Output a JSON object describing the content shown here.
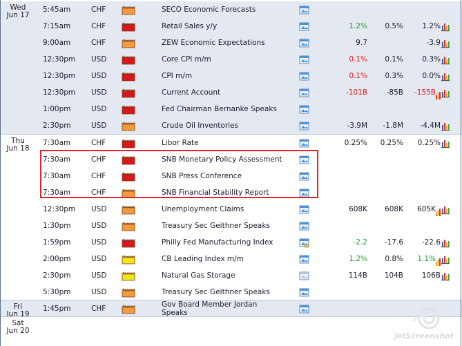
{
  "days": [
    {
      "label": [
        "Wed",
        "Jun 17"
      ],
      "rows": [
        {
          "time": "5:45am",
          "cur": "CHF",
          "imp": "medium",
          "event": "SECO Economic Forecasts",
          "note": "note-icon",
          "actual": "",
          "forecast": "",
          "previous": "",
          "chart": false
        },
        {
          "time": "7:15am",
          "cur": "CHF",
          "imp": "high",
          "event": "Retail Sales y/y",
          "note": "note-icon",
          "actual": "1.2%",
          "actual_color": "green",
          "forecast": "0.5%",
          "previous": "1.2%",
          "chart": true
        },
        {
          "time": "9:00am",
          "cur": "CHF",
          "imp": "medium",
          "event": "ZEW Economic Expectations",
          "note": "note-icon",
          "actual": "9.7",
          "forecast": "",
          "previous": "-3.9",
          "chart": true
        },
        {
          "time": "12:30pm",
          "cur": "USD",
          "imp": "high",
          "event": "Core CPI m/m",
          "note": "note-icon",
          "actual": "0.1%",
          "actual_color": "red",
          "forecast": "0.1%",
          "previous": "0.3%",
          "chart": true
        },
        {
          "time": "12:30pm",
          "cur": "USD",
          "imp": "high",
          "event": "CPI m/m",
          "note": "note-icon",
          "actual": "0.1%",
          "actual_color": "red",
          "forecast": "0.3%",
          "previous": "0.0%",
          "chart": true
        },
        {
          "time": "12:30pm",
          "cur": "USD",
          "imp": "high",
          "event": "Current Account",
          "note": "note-icon",
          "actual": "-101B",
          "actual_color": "red",
          "forecast": "-85B",
          "previous": "-155B",
          "previous_color": "red",
          "revised": "down",
          "chart": true
        },
        {
          "time": "1:00pm",
          "cur": "USD",
          "imp": "high",
          "event": "Fed Chairman Bernanke Speaks",
          "note": "note-icon",
          "actual": "",
          "forecast": "",
          "previous": "",
          "chart": false
        },
        {
          "time": "2:30pm",
          "cur": "USD",
          "imp": "medium",
          "event": "Crude Oil Inventories",
          "note": "note-icon",
          "actual": "-3.9M",
          "forecast": "-1.8M",
          "previous": "-4.4M",
          "chart": true
        }
      ]
    },
    {
      "label": [
        "Thu",
        "Jun 18"
      ],
      "rows": [
        {
          "time": "7:30am",
          "cur": "CHF",
          "imp": "high",
          "event": "Libor Rate",
          "note": "note-icon",
          "actual": "0.25%",
          "forecast": "0.25%",
          "previous": "0.25%",
          "chart": true
        },
        {
          "time": "7:30am",
          "cur": "CHF",
          "imp": "high",
          "event": "SNB Monetary Policy Assessment",
          "note": "note-icon",
          "actual": "",
          "forecast": "",
          "previous": "",
          "chart": false
        },
        {
          "time": "7:30am",
          "cur": "CHF",
          "imp": "high",
          "event": "SNB Press Conference",
          "note": "note-icon",
          "actual": "",
          "forecast": "",
          "previous": "",
          "chart": false
        },
        {
          "time": "7:30am",
          "cur": "CHF",
          "imp": "medium",
          "event": "SNB Financial Stability Report",
          "note": "note-icon",
          "actual": "",
          "forecast": "",
          "previous": "",
          "chart": false
        },
        {
          "time": "12:30pm",
          "cur": "USD",
          "imp": "medium",
          "event": "Unemployment Claims",
          "note": "note-icon",
          "actual": "608K",
          "forecast": "608K",
          "previous": "605K",
          "revised": "up",
          "chart": true
        },
        {
          "time": "1:30pm",
          "cur": "USD",
          "imp": "medium",
          "event": "Treasury Sec Geithner Speaks",
          "note": "note-icon",
          "actual": "",
          "forecast": "",
          "previous": "",
          "chart": false
        },
        {
          "time": "1:59pm",
          "cur": "USD",
          "imp": "high",
          "event": "Philly Fed Manufacturing Index",
          "note": "note-star-icon",
          "actual": "-2.2",
          "actual_color": "green",
          "forecast": "-17.6",
          "previous": "-22.6",
          "chart": true
        },
        {
          "time": "2:00pm",
          "cur": "USD",
          "imp": "low",
          "event": "CB Leading Index m/m",
          "note": "note-icon",
          "actual": "1.2%",
          "actual_color": "green",
          "forecast": "0.8%",
          "previous": "1.1%",
          "previous_color": "green",
          "revised": "up",
          "chart": true
        },
        {
          "time": "2:30pm",
          "cur": "USD",
          "imp": "low",
          "event": "Natural Gas Storage",
          "note": "note-grey-icon",
          "actual": "114B",
          "forecast": "104B",
          "previous": "106B",
          "chart": true
        },
        {
          "time": "5:30pm",
          "cur": "USD",
          "imp": "medium",
          "event": "Treasury Sec Geithner Speaks",
          "note": "note-icon",
          "actual": "",
          "forecast": "",
          "previous": "",
          "chart": false
        }
      ]
    },
    {
      "label": [
        "Fri",
        "Jun 19"
      ],
      "rows": [
        {
          "time": "1:45pm",
          "cur": "CHF",
          "imp": "medium",
          "event": "Gov Board Member Jordan Speaks",
          "event_lines": [
            "Gov Board Member Jordan",
            "Speaks"
          ],
          "note": "note-icon",
          "actual": "",
          "forecast": "",
          "previous": "",
          "chart": false
        }
      ]
    },
    {
      "label": [
        "Sat",
        "Jun 20"
      ],
      "rows": []
    }
  ],
  "colors": {
    "high": "#d8161d",
    "medium": "#f39a3c",
    "low": "#f4e41c",
    "row_shade": "#e3e8f1",
    "highlight_box": "#e0242b"
  },
  "watermark": "jetScreenshot"
}
